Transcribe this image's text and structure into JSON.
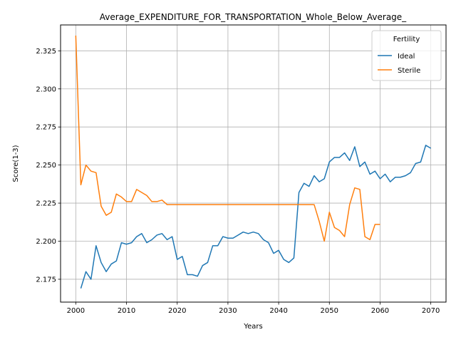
{
  "chart_data": {
    "type": "line",
    "title": "Average_EXPENDITURE_FOR_TRANSPORTATION_Whole_Below_Average_",
    "xlabel": "Years",
    "ylabel": "Score(1-3)",
    "xlim": [
      1997,
      2073
    ],
    "ylim": [
      2.16,
      2.342
    ],
    "xticks": [
      2000,
      2010,
      2020,
      2030,
      2040,
      2050,
      2060,
      2070
    ],
    "yticks": [
      2.175,
      2.2,
      2.225,
      2.25,
      2.275,
      2.3,
      2.325
    ],
    "xtick_labels": [
      "2000",
      "2010",
      "2020",
      "2030",
      "2040",
      "2050",
      "2060",
      "2070"
    ],
    "ytick_labels": [
      "2.175",
      "2.200",
      "2.225",
      "2.250",
      "2.275",
      "2.300",
      "2.325"
    ],
    "grid": true,
    "legend": {
      "title": "Fertility",
      "position": "top-right"
    },
    "series": [
      {
        "name": "Ideal",
        "color": "#1f77b4",
        "x": [
          2001,
          2002,
          2003,
          2004,
          2005,
          2006,
          2007,
          2008,
          2009,
          2010,
          2011,
          2012,
          2013,
          2014,
          2015,
          2016,
          2017,
          2018,
          2019,
          2020,
          2021,
          2022,
          2023,
          2024,
          2025,
          2026,
          2027,
          2028,
          2029,
          2030,
          2031,
          2032,
          2033,
          2034,
          2035,
          2036,
          2037,
          2038,
          2039,
          2040,
          2041,
          2042,
          2043,
          2044,
          2045,
          2046,
          2047,
          2048,
          2049,
          2050,
          2051,
          2052,
          2053,
          2054,
          2055,
          2056,
          2057,
          2058,
          2059,
          2060,
          2061,
          2062,
          2063,
          2064,
          2065,
          2066,
          2067,
          2068,
          2069,
          2070
        ],
        "y": [
          2.169,
          2.18,
          2.175,
          2.197,
          2.186,
          2.18,
          2.185,
          2.187,
          2.199,
          2.198,
          2.199,
          2.203,
          2.205,
          2.199,
          2.201,
          2.204,
          2.205,
          2.201,
          2.203,
          2.188,
          2.19,
          2.178,
          2.178,
          2.177,
          2.184,
          2.186,
          2.197,
          2.197,
          2.203,
          2.202,
          2.202,
          2.204,
          2.206,
          2.205,
          2.206,
          2.205,
          2.201,
          2.199,
          2.192,
          2.194,
          2.188,
          2.186,
          2.189,
          2.232,
          2.238,
          2.236,
          2.243,
          2.239,
          2.241,
          2.252,
          2.255,
          2.255,
          2.258,
          2.253,
          2.262,
          2.249,
          2.252,
          2.244,
          2.246,
          2.241,
          2.244,
          2.239,
          2.242,
          2.242,
          2.243,
          2.245,
          2.251,
          2.252,
          2.263,
          2.261
        ]
      },
      {
        "name": "Sterile",
        "color": "#ff7f0e",
        "x": [
          2000,
          2001,
          2002,
          2003,
          2004,
          2005,
          2006,
          2007,
          2008,
          2009,
          2010,
          2011,
          2012,
          2013,
          2014,
          2015,
          2016,
          2017,
          2018,
          2019,
          2020,
          2021,
          2022,
          2023,
          2024,
          2025,
          2026,
          2027,
          2028,
          2029,
          2030,
          2031,
          2032,
          2033,
          2034,
          2035,
          2036,
          2037,
          2038,
          2039,
          2040,
          2041,
          2042,
          2043,
          2044,
          2045,
          2046,
          2047,
          2048,
          2049,
          2050,
          2051,
          2052,
          2053,
          2054,
          2055,
          2056,
          2057,
          2058,
          2059,
          2060
        ],
        "y": [
          2.335,
          2.237,
          2.25,
          2.246,
          2.245,
          2.223,
          2.217,
          2.219,
          2.231,
          2.229,
          2.226,
          2.226,
          2.234,
          2.232,
          2.23,
          2.226,
          2.226,
          2.227,
          2.224,
          2.224,
          2.224,
          2.224,
          2.224,
          2.224,
          2.224,
          2.224,
          2.224,
          2.224,
          2.224,
          2.224,
          2.224,
          2.224,
          2.224,
          2.224,
          2.224,
          2.224,
          2.224,
          2.224,
          2.224,
          2.224,
          2.224,
          2.224,
          2.224,
          2.224,
          2.224,
          2.224,
          2.224,
          2.224,
          2.213,
          2.2,
          2.219,
          2.209,
          2.207,
          2.203,
          2.224,
          2.235,
          2.234,
          2.203,
          2.201,
          2.211,
          2.211
        ]
      }
    ]
  }
}
